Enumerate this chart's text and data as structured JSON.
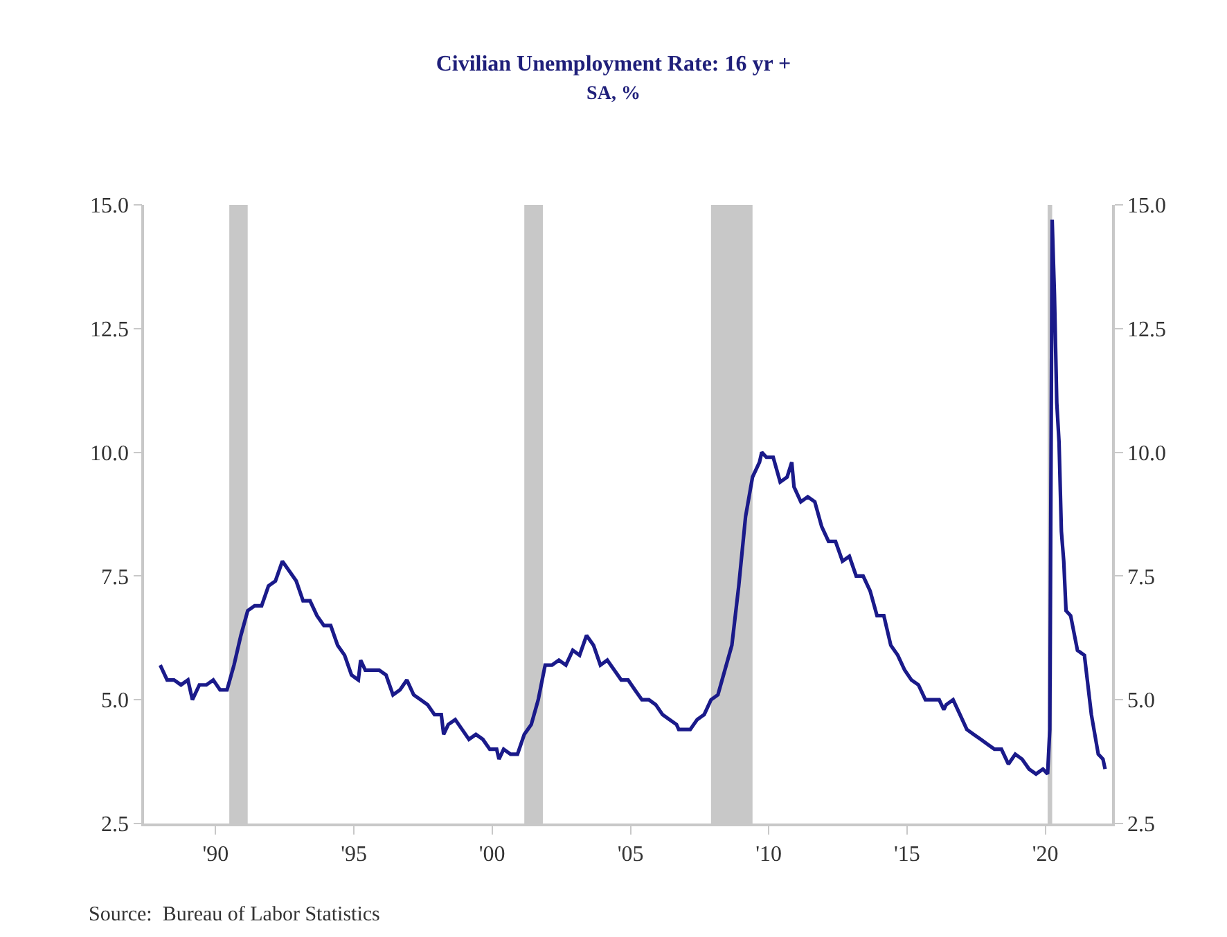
{
  "chart_data": {
    "type": "line",
    "title": "Civilian Unemployment Rate: 16 yr +",
    "subtitle": "SA, %",
    "x": [
      "1988-01",
      "1988-04",
      "1988-07",
      "1988-10",
      "1989-01",
      "1989-03",
      "1989-06",
      "1989-09",
      "1989-12",
      "1990-03",
      "1990-06",
      "1990-09",
      "1990-12",
      "1991-03",
      "1991-06",
      "1991-09",
      "1991-12",
      "1992-03",
      "1992-06",
      "1992-09",
      "1992-12",
      "1993-03",
      "1993-06",
      "1993-09",
      "1993-12",
      "1994-03",
      "1994-06",
      "1994-09",
      "1994-12",
      "1995-03",
      "1995-04",
      "1995-06",
      "1995-09",
      "1995-12",
      "1996-03",
      "1996-06",
      "1996-09",
      "1996-12",
      "1997-03",
      "1997-06",
      "1997-09",
      "1997-12",
      "1998-03",
      "1998-04",
      "1998-06",
      "1998-09",
      "1998-12",
      "1999-03",
      "1999-06",
      "1999-09",
      "1999-12",
      "2000-03",
      "2000-04",
      "2000-06",
      "2000-09",
      "2000-12",
      "2001-03",
      "2001-06",
      "2001-09",
      "2001-12",
      "2002-03",
      "2002-06",
      "2002-09",
      "2002-12",
      "2003-03",
      "2003-06",
      "2003-09",
      "2003-12",
      "2004-03",
      "2004-06",
      "2004-09",
      "2004-12",
      "2005-03",
      "2005-06",
      "2005-09",
      "2005-12",
      "2006-03",
      "2006-06",
      "2006-09",
      "2006-10",
      "2006-12",
      "2007-03",
      "2007-06",
      "2007-09",
      "2007-12",
      "2008-03",
      "2008-06",
      "2008-09",
      "2008-12",
      "2009-03",
      "2009-06",
      "2009-09",
      "2009-10",
      "2009-12",
      "2010-03",
      "2010-06",
      "2010-09",
      "2010-11",
      "2010-12",
      "2011-03",
      "2011-06",
      "2011-09",
      "2011-12",
      "2012-03",
      "2012-06",
      "2012-09",
      "2012-12",
      "2013-03",
      "2013-06",
      "2013-09",
      "2013-12",
      "2014-03",
      "2014-06",
      "2014-09",
      "2014-12",
      "2015-03",
      "2015-06",
      "2015-09",
      "2015-12",
      "2016-03",
      "2016-05",
      "2016-06",
      "2016-09",
      "2016-12",
      "2017-03",
      "2017-06",
      "2017-09",
      "2017-12",
      "2018-03",
      "2018-06",
      "2018-09",
      "2018-12",
      "2019-03",
      "2019-06",
      "2019-09",
      "2019-12",
      "2020-02",
      "2020-03",
      "2020-04",
      "2020-05",
      "2020-06",
      "2020-07",
      "2020-08",
      "2020-09",
      "2020-10",
      "2020-12",
      "2021-03",
      "2021-06",
      "2021-09",
      "2021-12",
      "2022-02",
      "2022-03"
    ],
    "series": [
      {
        "color": "#1a1a8a",
        "values": [
          5.7,
          5.4,
          5.4,
          5.3,
          5.4,
          5.0,
          5.3,
          5.3,
          5.4,
          5.2,
          5.2,
          5.7,
          6.3,
          6.8,
          6.9,
          6.9,
          7.3,
          7.4,
          7.8,
          7.6,
          7.4,
          7.0,
          7.0,
          6.7,
          6.5,
          6.5,
          6.1,
          5.9,
          5.5,
          5.4,
          5.8,
          5.6,
          5.6,
          5.6,
          5.5,
          5.1,
          5.2,
          5.4,
          5.1,
          5.0,
          4.9,
          4.7,
          4.7,
          4.3,
          4.5,
          4.6,
          4.4,
          4.2,
          4.3,
          4.2,
          4.0,
          4.0,
          3.8,
          4.0,
          3.9,
          3.9,
          4.3,
          4.5,
          5.0,
          5.7,
          5.7,
          5.8,
          5.7,
          6.0,
          5.9,
          6.3,
          6.1,
          5.7,
          5.8,
          5.6,
          5.4,
          5.4,
          5.2,
          5.0,
          5.0,
          4.9,
          4.7,
          4.6,
          4.5,
          4.4,
          4.4,
          4.4,
          4.6,
          4.7,
          5.0,
          5.1,
          5.6,
          6.1,
          7.3,
          8.7,
          9.5,
          9.8,
          10.0,
          9.9,
          9.9,
          9.4,
          9.5,
          9.8,
          9.3,
          9.0,
          9.1,
          9.0,
          8.5,
          8.2,
          8.2,
          7.8,
          7.9,
          7.5,
          7.5,
          7.2,
          6.7,
          6.7,
          6.1,
          5.9,
          5.6,
          5.4,
          5.3,
          5.0,
          5.0,
          5.0,
          4.8,
          4.9,
          5.0,
          4.7,
          4.4,
          4.3,
          4.2,
          4.1,
          4.0,
          4.0,
          3.7,
          3.9,
          3.8,
          3.6,
          3.5,
          3.6,
          3.5,
          4.4,
          14.7,
          13.2,
          11.0,
          10.2,
          8.4,
          7.8,
          6.8,
          6.7,
          6.0,
          5.9,
          4.7,
          3.9,
          3.8,
          3.6
        ]
      }
    ],
    "xlim": [
      "1987-06",
      "2022-06"
    ],
    "xticks": [
      {
        "value": "1990-01",
        "label": "'90"
      },
      {
        "value": "1995-01",
        "label": "'95"
      },
      {
        "value": "2000-01",
        "label": "'00"
      },
      {
        "value": "2005-01",
        "label": "'05"
      },
      {
        "value": "2010-01",
        "label": "'10"
      },
      {
        "value": "2015-01",
        "label": "'15"
      },
      {
        "value": "2020-01",
        "label": "'20"
      }
    ],
    "ylim": [
      2.5,
      15.0
    ],
    "yticks": [
      {
        "value": 2.5,
        "label": "2.5"
      },
      {
        "value": 5,
        "label": "5.0"
      },
      {
        "value": 7.5,
        "label": "7.5"
      },
      {
        "value": 10,
        "label": "10.0"
      },
      {
        "value": 12.5,
        "label": "12.5"
      },
      {
        "value": 15,
        "label": "15.0"
      }
    ],
    "y2lim": [
      2.5,
      15.0
    ],
    "y2ticks": [
      {
        "value": 2.5,
        "label": "2.5"
      },
      {
        "value": 5,
        "label": "5.0"
      },
      {
        "value": 7.5,
        "label": "7.5"
      },
      {
        "value": 10,
        "label": "10.0"
      },
      {
        "value": 12.5,
        "label": "12.5"
      },
      {
        "value": 15,
        "label": "15.0"
      }
    ],
    "bands": [
      {
        "axis": "x",
        "from": "1990-07",
        "to": "1991-03",
        "color": "#c8c8c8"
      },
      {
        "axis": "x",
        "from": "2001-03",
        "to": "2001-11",
        "color": "#c8c8c8"
      },
      {
        "axis": "x",
        "from": "2007-12",
        "to": "2009-06",
        "color": "#c8c8c8"
      },
      {
        "axis": "x",
        "from": "2020-02",
        "to": "2020-04",
        "color": "#c8c8c8"
      }
    ],
    "annotations": [
      "Source:  Bureau of Labor Statistics"
    ],
    "grid": false,
    "marker": "none",
    "line_style": "solid"
  }
}
